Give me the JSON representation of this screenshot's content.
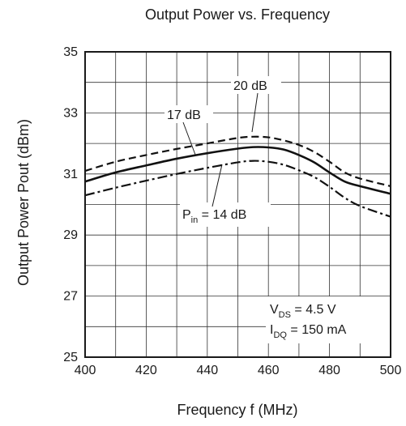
{
  "chart_data": {
    "type": "line",
    "title": "Output Power vs. Frequency",
    "xlabel": "Frequency   f  (MHz)",
    "ylabel": "Output Power   Pout  (dBm)",
    "xlim": [
      400,
      500
    ],
    "ylim": [
      25,
      35
    ],
    "x_ticks": [
      400,
      420,
      440,
      460,
      480,
      500
    ],
    "y_ticks": [
      25,
      27,
      29,
      31,
      33,
      35
    ],
    "x_minor_step": 10,
    "y_minor_step": 1,
    "grid": true,
    "series": [
      {
        "name": "20 dB",
        "style": "dashed",
        "x": [
          400,
          410,
          420,
          430,
          440,
          450,
          455,
          460,
          465,
          470,
          475,
          480,
          485,
          490,
          500
        ],
        "y": [
          31.1,
          31.4,
          31.62,
          31.82,
          32.0,
          32.18,
          32.22,
          32.2,
          32.1,
          31.95,
          31.72,
          31.4,
          31.05,
          30.85,
          30.6
        ]
      },
      {
        "name": "17 dB",
        "style": "solid",
        "x": [
          400,
          410,
          420,
          430,
          440,
          450,
          455,
          460,
          465,
          470,
          475,
          480,
          485,
          490,
          500
        ],
        "y": [
          30.75,
          31.05,
          31.28,
          31.5,
          31.68,
          31.83,
          31.88,
          31.87,
          31.8,
          31.62,
          31.38,
          31.05,
          30.75,
          30.6,
          30.35
        ]
      },
      {
        "name": "Pin = 14 dB",
        "style": "dashdot",
        "x": [
          400,
          410,
          420,
          430,
          440,
          450,
          455,
          460,
          465,
          470,
          475,
          480,
          485,
          490,
          500
        ],
        "y": [
          30.3,
          30.55,
          30.78,
          31.0,
          31.2,
          31.38,
          31.43,
          31.4,
          31.3,
          31.12,
          30.9,
          30.58,
          30.22,
          29.95,
          29.6
        ]
      }
    ],
    "annotations": {
      "label_20": "20 dB",
      "label_17": "17 dB",
      "pin_main": "P",
      "pin_sub": "in",
      "pin_rest": " = 14 dB",
      "vds_main": "V",
      "vds_sub": "DS",
      "vds_rest": " = 4.5 V",
      "idq_main": "I",
      "idq_sub": "DQ",
      "idq_rest": " = 150 mA"
    }
  }
}
